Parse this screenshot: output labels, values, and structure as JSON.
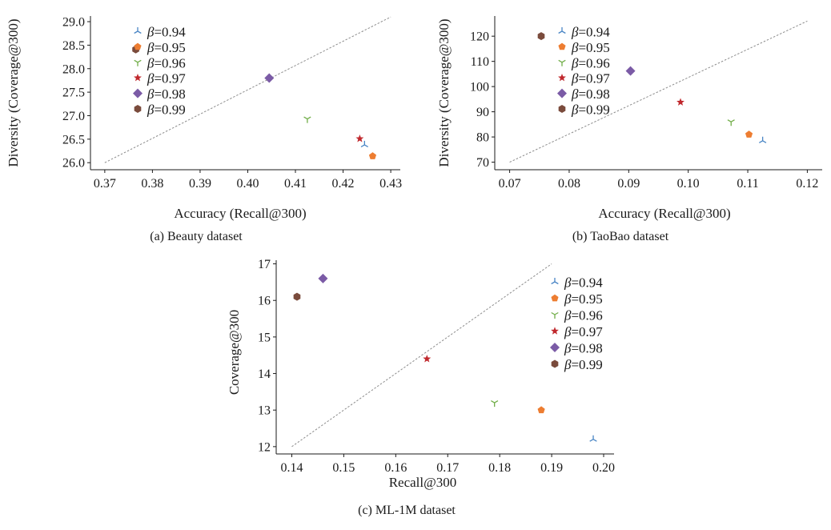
{
  "chart_data": [
    {
      "type": "scatter",
      "caption": "(a) Beauty dataset",
      "xlabel": "Accuracy (Recall@300)",
      "ylabel": "Diversity (Coverage@300)",
      "xlim": [
        0.367,
        0.432
      ],
      "ylim": [
        25.85,
        29.12
      ],
      "xticks": [
        "0.37",
        "0.38",
        "0.39",
        "0.40",
        "0.41",
        "0.42",
        "0.43"
      ],
      "yticks": [
        "26.0",
        "26.5",
        "27.0",
        "27.5",
        "28.0",
        "28.5",
        "29.0"
      ],
      "grid": false,
      "legend_position": "top-left",
      "reference_line": [
        [
          0.37,
          26.0
        ],
        [
          0.43,
          29.1
        ]
      ],
      "series": [
        {
          "name": "β=0.94",
          "x": 0.4245,
          "y": 26.38
        },
        {
          "name": "β=0.95",
          "x": 0.4262,
          "y": 26.14
        },
        {
          "name": "β=0.96",
          "x": 0.4125,
          "y": 26.93
        },
        {
          "name": "β=0.97",
          "x": 0.4235,
          "y": 26.51
        },
        {
          "name": "β=0.98",
          "x": 0.4045,
          "y": 27.8
        },
        {
          "name": "β=0.99",
          "x": 0.3765,
          "y": 28.41
        }
      ]
    },
    {
      "type": "scatter",
      "caption": "(b) TaoBao dataset",
      "xlabel": "Accuracy (Recall@300)",
      "ylabel": "Diversity (Coverage@300)",
      "xlim": [
        0.0675,
        0.1225
      ],
      "ylim": [
        67,
        128
      ],
      "xticks": [
        "0.07",
        "0.08",
        "0.09",
        "0.10",
        "0.11",
        "0.12"
      ],
      "yticks": [
        "70",
        "80",
        "90",
        "100",
        "110",
        "120"
      ],
      "grid": false,
      "legend_position": "top-left",
      "reference_line": [
        [
          0.07,
          70
        ],
        [
          0.12,
          126
        ]
      ],
      "series": [
        {
          "name": "β=0.94",
          "x": 0.1125,
          "y": 78.5
        },
        {
          "name": "β=0.95",
          "x": 0.1102,
          "y": 81.0
        },
        {
          "name": "β=0.96",
          "x": 0.1072,
          "y": 86.0
        },
        {
          "name": "β=0.97",
          "x": 0.0987,
          "y": 93.8
        },
        {
          "name": "β=0.98",
          "x": 0.0903,
          "y": 106.2
        },
        {
          "name": "β=0.99",
          "x": 0.0753,
          "y": 120.0
        }
      ]
    },
    {
      "type": "scatter",
      "caption": "(c) ML-1M dataset",
      "xlabel": "Recall@300",
      "ylabel": "Coverage@300",
      "xlim": [
        0.137,
        0.202
      ],
      "ylim": [
        11.8,
        17.1
      ],
      "xticks": [
        "0.14",
        "0.15",
        "0.16",
        "0.17",
        "0.18",
        "0.19",
        "0.20"
      ],
      "yticks": [
        "12",
        "13",
        "14",
        "15",
        "16",
        "17"
      ],
      "grid": false,
      "legend_position": "top-right",
      "reference_line": [
        [
          0.14,
          12.0
        ],
        [
          0.19,
          17.0
        ]
      ],
      "series": [
        {
          "name": "β=0.94",
          "x": 0.198,
          "y": 12.2
        },
        {
          "name": "β=0.95",
          "x": 0.188,
          "y": 13.0
        },
        {
          "name": "β=0.96",
          "x": 0.179,
          "y": 13.2
        },
        {
          "name": "β=0.97",
          "x": 0.166,
          "y": 14.4
        },
        {
          "name": "β=0.98",
          "x": 0.146,
          "y": 16.6
        },
        {
          "name": "β=0.99",
          "x": 0.141,
          "y": 16.1
        }
      ]
    }
  ],
  "colors": {
    "β=0.94": "#4a86c5",
    "β=0.95": "#ed7d31",
    "β=0.96": "#70ad47",
    "β=0.97": "#c0282d",
    "β=0.98": "#7b5ba6",
    "β=0.99": "#7a4b3c",
    "reference_line": "#8c8c8c",
    "axis": "#1a1a1a"
  },
  "markers": {
    "β=0.94": "tri-down",
    "β=0.95": "pentagon",
    "β=0.96": "tri-up",
    "β=0.97": "star",
    "β=0.98": "diamond",
    "β=0.99": "hexagon"
  }
}
